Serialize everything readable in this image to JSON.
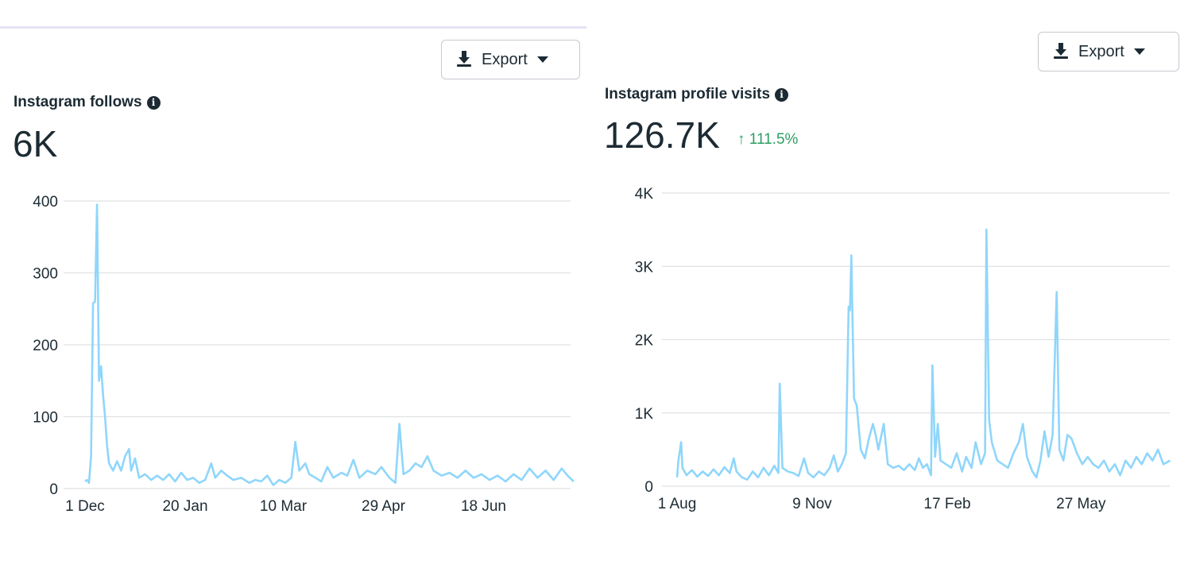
{
  "colors": {
    "line": "#8fd6fb",
    "grid": "#dfe1e4",
    "up": "#2e9e63",
    "text": "#1c2b33"
  },
  "left": {
    "export_label": "Export",
    "export_icon": "download-icon",
    "dropdown_icon": "caret-down-icon",
    "title": "Instagram follows",
    "info_icon": "info-icon",
    "total": "6K"
  },
  "right": {
    "export_label": "Export",
    "export_icon": "download-icon",
    "dropdown_icon": "caret-down-icon",
    "title": "Instagram profile visits",
    "info_icon": "info-icon",
    "total": "126.7K",
    "change": "111.5%",
    "change_icon": "arrow-up-icon"
  },
  "chart_data": [
    {
      "type": "line",
      "ylim": [
        0,
        400
      ],
      "grid": true,
      "y_ticks": [
        {
          "v": 0,
          "label": "0"
        },
        {
          "v": 100,
          "label": "100"
        },
        {
          "v": 200,
          "label": "200"
        },
        {
          "v": 300,
          "label": "300"
        },
        {
          "v": 400,
          "label": "400"
        }
      ],
      "x_ticks": [
        "1 Dec",
        "20 Jan",
        "10 Mar",
        "29 Apr",
        "18 Jun"
      ],
      "x": [
        "1 Dec",
        "2 Dec",
        "3 Dec",
        "4 Dec",
        "5 Dec",
        "6 Dec",
        "7 Dec",
        "8 Dec",
        "9 Dec",
        "10 Dec",
        "11 Dec",
        "12 Dec",
        "13 Dec",
        "15 Dec",
        "17 Dec",
        "19 Dec",
        "21 Dec",
        "23 Dec",
        "24 Dec",
        "26 Dec",
        "28 Dec",
        "31 Dec",
        "3 Jan",
        "6 Jan",
        "9 Jan",
        "12 Jan",
        "15 Jan",
        "18 Jan",
        "21 Jan",
        "24 Jan",
        "27 Jan",
        "30 Jan",
        "2 Feb",
        "4 Feb",
        "7 Feb",
        "10 Feb",
        "13 Feb",
        "17 Feb",
        "21 Feb",
        "24 Feb",
        "27 Feb",
        "2 Mar",
        "5 Mar",
        "8 Mar",
        "11 Mar",
        "14 Mar",
        "16 Mar",
        "18 Mar",
        "21 Mar",
        "23 Mar",
        "26 Mar",
        "29 Mar",
        "1 Apr",
        "4 Apr",
        "8 Apr",
        "11 Apr",
        "14 Apr",
        "17 Apr",
        "21 Apr",
        "25 Apr",
        "28 Apr",
        "2 May",
        "5 May",
        "7 May",
        "9 May",
        "12 May",
        "15 May",
        "18 May",
        "21 May",
        "24 May",
        "28 May",
        "1 Jun",
        "5 Jun",
        "9 Jun",
        "13 Jun",
        "17 Jun",
        "21 Jun",
        "25 Jun",
        "29 Jun",
        "3 Jul",
        "7 Jul",
        "11 Jul",
        "15 Jul",
        "19 Jul",
        "23 Jul",
        "27 Jul",
        "30 Jul",
        "2 Aug"
      ],
      "values": [
        10,
        12,
        8,
        45,
        258,
        260,
        395,
        150,
        170,
        130,
        100,
        60,
        35,
        25,
        38,
        25,
        45,
        55,
        25,
        42,
        15,
        20,
        12,
        18,
        12,
        20,
        10,
        22,
        12,
        15,
        8,
        12,
        35,
        15,
        25,
        18,
        12,
        15,
        8,
        12,
        10,
        18,
        5,
        12,
        8,
        15,
        65,
        25,
        35,
        20,
        15,
        10,
        30,
        15,
        22,
        18,
        40,
        15,
        25,
        20,
        30,
        15,
        8,
        90,
        20,
        25,
        35,
        30,
        45,
        25,
        18,
        22,
        15,
        25,
        15,
        20,
        12,
        18,
        10,
        20,
        12,
        28,
        15,
        25,
        12,
        28,
        18,
        10
      ]
    },
    {
      "type": "line",
      "ylim": [
        0,
        4000
      ],
      "grid": true,
      "y_ticks": [
        {
          "v": 0,
          "label": "0"
        },
        {
          "v": 1000,
          "label": "1K"
        },
        {
          "v": 2000,
          "label": "2K"
        },
        {
          "v": 3000,
          "label": "3K"
        },
        {
          "v": 4000,
          "label": "4K"
        }
      ],
      "x_ticks": [
        "1 Aug",
        "9 Nov",
        "17 Feb",
        "27 May"
      ],
      "x": [
        "1 Aug",
        "2 Aug",
        "4 Aug",
        "5 Aug",
        "8 Aug",
        "12 Aug",
        "16 Aug",
        "20 Aug",
        "24 Aug",
        "28 Aug",
        "1 Sep",
        "5 Sep",
        "9 Sep",
        "12 Sep",
        "14 Sep",
        "18 Sep",
        "22 Sep",
        "26 Sep",
        "30 Sep",
        "4 Oct",
        "8 Oct",
        "12 Oct",
        "15 Oct",
        "16 Oct",
        "18 Oct",
        "22 Oct",
        "26 Oct",
        "30 Oct",
        "3 Nov",
        "6 Nov",
        "10 Nov",
        "14 Nov",
        "18 Nov",
        "22 Nov",
        "25 Nov",
        "28 Nov",
        "1 Dec",
        "4 Dec",
        "6 Dec",
        "7 Dec",
        "8 Dec",
        "10 Dec",
        "12 Dec",
        "15 Dec",
        "18 Dec",
        "21 Dec",
        "24 Dec",
        "26 Dec",
        "28 Dec",
        "1 Jan",
        "4 Jan",
        "8 Jan",
        "12 Jan",
        "16 Jan",
        "20 Jan",
        "24 Jan",
        "27 Jan",
        "30 Jan",
        "2 Feb",
        "5 Feb",
        "6 Feb",
        "8 Feb",
        "10 Feb",
        "12 Feb",
        "16 Feb",
        "20 Feb",
        "24 Feb",
        "28 Feb",
        "3 Mar",
        "7 Mar",
        "10 Mar",
        "14 Mar",
        "17 Mar",
        "18 Mar",
        "20 Mar",
        "22 Mar",
        "26 Mar",
        "30 Mar",
        "3 Apr",
        "7 Apr",
        "11 Apr",
        "14 Apr",
        "17 Apr",
        "21 Apr",
        "24 Apr",
        "27 Apr",
        "30 Apr",
        "3 May",
        "6 May",
        "9 May",
        "11 May",
        "14 May",
        "17 May",
        "20 May",
        "24 May",
        "28 May",
        "1 Jun",
        "5 Jun",
        "9 Jun",
        "13 Jun",
        "17 Jun",
        "21 Jun",
        "25 Jun",
        "29 Jun",
        "3 Jul",
        "7 Jul",
        "11 Jul",
        "15 Jul",
        "19 Jul",
        "23 Jul",
        "27 Jul",
        "1 Aug"
      ],
      "values": [
        120,
        350,
        600,
        250,
        150,
        220,
        130,
        200,
        140,
        230,
        150,
        260,
        180,
        380,
        200,
        120,
        90,
        200,
        120,
        250,
        150,
        280,
        180,
        1400,
        250,
        200,
        180,
        140,
        380,
        180,
        120,
        200,
        150,
        250,
        420,
        200,
        300,
        450,
        2450,
        2400,
        3150,
        1200,
        1100,
        500,
        380,
        650,
        850,
        700,
        500,
        850,
        300,
        250,
        280,
        220,
        300,
        220,
        380,
        250,
        300,
        150,
        1650,
        400,
        850,
        350,
        300,
        250,
        450,
        200,
        400,
        250,
        600,
        300,
        450,
        3500,
        900,
        600,
        350,
        300,
        250,
        450,
        600,
        850,
        400,
        200,
        120,
        350,
        750,
        400,
        700,
        2650,
        500,
        350,
        700,
        650,
        450,
        300,
        400,
        300,
        250,
        350,
        200,
        300,
        150,
        350,
        250,
        400,
        300,
        450,
        350,
        500,
        300,
        350
      ]
    }
  ]
}
